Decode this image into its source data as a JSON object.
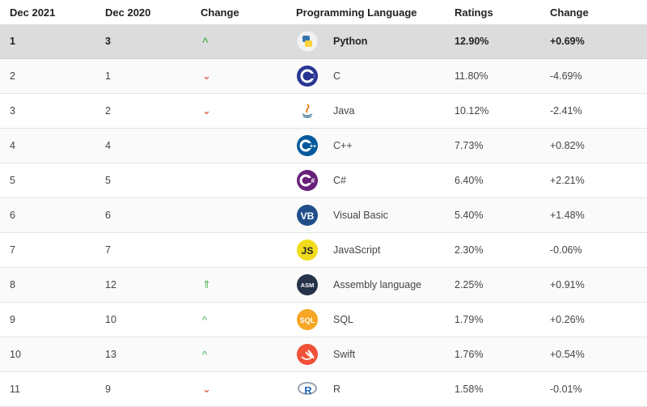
{
  "headers": [
    "Dec 2021",
    "Dec 2020",
    "Change",
    "Programming Language",
    "Ratings",
    "Change"
  ],
  "rows": [
    {
      "rank": "1",
      "prev": "3",
      "trend": "up",
      "arrow": "^",
      "language": "Python",
      "rating": "12.90%",
      "change": "+0.69%",
      "icon": "python-icon",
      "highlight": true
    },
    {
      "rank": "2",
      "prev": "1",
      "trend": "down",
      "arrow": "⌄",
      "language": "C",
      "rating": "11.80%",
      "change": "-4.69%",
      "icon": "c-icon"
    },
    {
      "rank": "3",
      "prev": "2",
      "trend": "down",
      "arrow": "⌄",
      "language": "Java",
      "rating": "10.12%",
      "change": "-2.41%",
      "icon": "java-icon"
    },
    {
      "rank": "4",
      "prev": "4",
      "trend": "none",
      "arrow": "",
      "language": "C++",
      "rating": "7.73%",
      "change": "+0.82%",
      "icon": "cpp-icon"
    },
    {
      "rank": "5",
      "prev": "5",
      "trend": "none",
      "arrow": "",
      "language": "C#",
      "rating": "6.40%",
      "change": "+2.21%",
      "icon": "csharp-icon"
    },
    {
      "rank": "6",
      "prev": "6",
      "trend": "none",
      "arrow": "",
      "language": "Visual Basic",
      "rating": "5.40%",
      "change": "+1.48%",
      "icon": "visual-basic-icon",
      "logo_text": "VB"
    },
    {
      "rank": "7",
      "prev": "7",
      "trend": "none",
      "arrow": "",
      "language": "JavaScript",
      "rating": "2.30%",
      "change": "-0.06%",
      "icon": "javascript-icon",
      "logo_text": "JS"
    },
    {
      "rank": "8",
      "prev": "12",
      "trend": "up",
      "arrow": "⇑",
      "language": "Assembly language",
      "rating": "2.25%",
      "change": "+0.91%",
      "icon": "assembly-icon",
      "logo_text": "ASM"
    },
    {
      "rank": "9",
      "prev": "10",
      "trend": "up",
      "arrow": "^",
      "language": "SQL",
      "rating": "1.79%",
      "change": "+0.26%",
      "icon": "sql-icon",
      "logo_text": "SQL"
    },
    {
      "rank": "10",
      "prev": "13",
      "trend": "up",
      "arrow": "^",
      "language": "Swift",
      "rating": "1.76%",
      "change": "+0.54%",
      "icon": "swift-icon"
    },
    {
      "rank": "11",
      "prev": "9",
      "trend": "down",
      "arrow": "⌄",
      "language": "R",
      "rating": "1.58%",
      "change": "-0.01%",
      "icon": "r-icon",
      "logo_text": "R"
    }
  ],
  "colors": {
    "up": "#4caf50",
    "down": "#d9411e",
    "highlight_row": "#dcdcdc"
  }
}
